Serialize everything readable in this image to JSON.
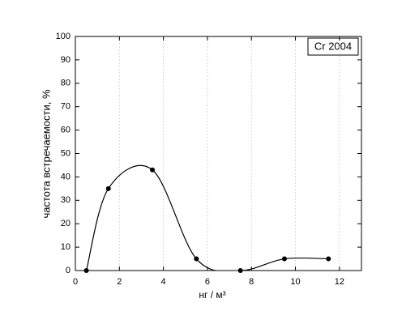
{
  "chart_data": {
    "type": "line",
    "x_label": "нг / м³",
    "y_label": "частота встречаемости, %",
    "annotation": "Cr 2004",
    "x": [
      0.5,
      1.5,
      3.5,
      5.5,
      7.5,
      9.5,
      11.5
    ],
    "series": [
      {
        "name": "Cr 2004",
        "color": "#000000",
        "values": [
          0,
          35,
          43,
          5,
          0,
          5,
          5
        ]
      }
    ],
    "xlim": [
      0,
      13
    ],
    "ylim": [
      0,
      100
    ],
    "xticks": [
      0,
      2,
      4,
      6,
      8,
      10,
      12
    ],
    "yticks": [
      0,
      10,
      20,
      30,
      40,
      50,
      60,
      70,
      80,
      90,
      100
    ],
    "grid": true
  }
}
